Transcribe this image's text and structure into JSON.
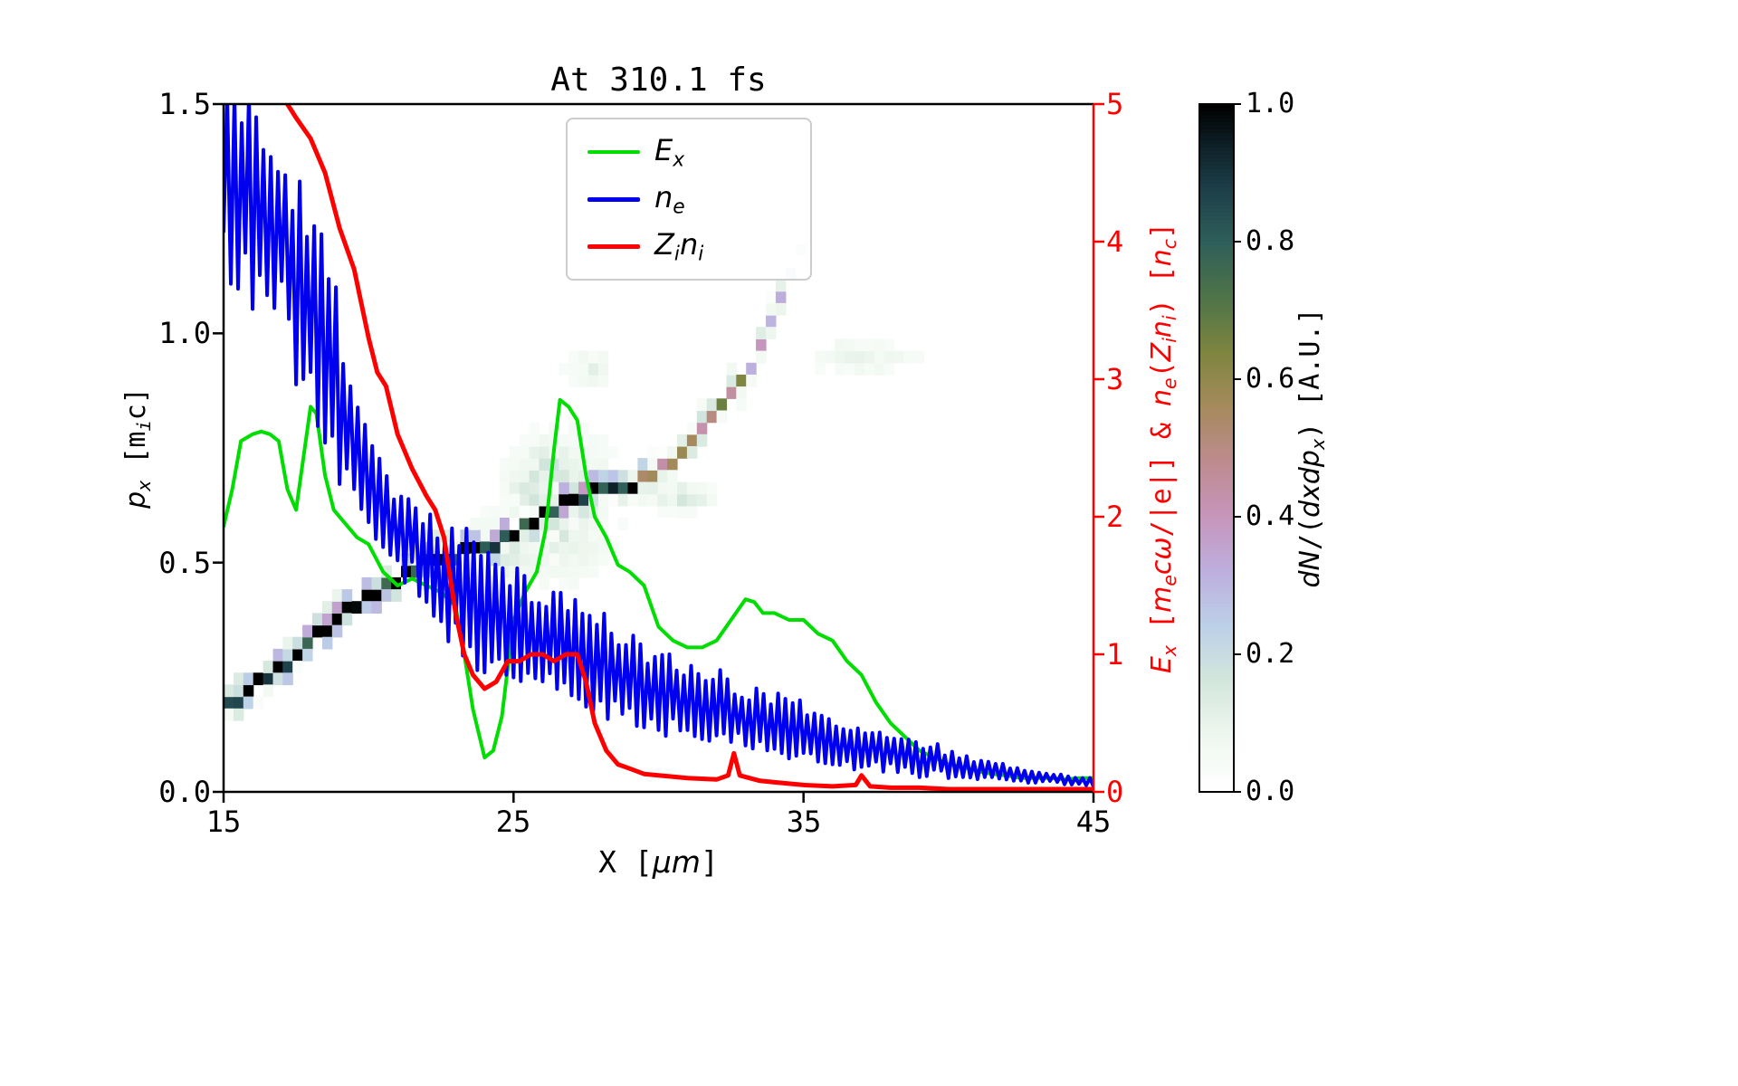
{
  "figure": {
    "title": "At 310.1 fs",
    "bg": "#ffffff"
  },
  "colors": {
    "green": "#00dd00",
    "blue": "#0000ee",
    "red": "#ff0000",
    "spine": "#000000",
    "legend_edge": "#cccccc"
  },
  "axes": {
    "left": {
      "label_parts": [
        [
          "p",
          "i"
        ],
        [
          "x",
          "sub"
        ],
        [
          " [m",
          "m"
        ],
        [
          "i",
          "msub"
        ],
        [
          "c]",
          "m"
        ]
      ],
      "ticks": [
        "0.0",
        "0.5",
        "1.0",
        "1.5"
      ]
    },
    "bottom": {
      "label_parts": [
        [
          "X [",
          "m"
        ],
        [
          "μm",
          "i"
        ],
        [
          "]",
          "m"
        ]
      ],
      "ticks": [
        "15",
        "25",
        "35",
        "45"
      ]
    },
    "right": {
      "label_parts": [
        [
          "E",
          "i"
        ],
        [
          "x",
          "sub"
        ],
        [
          " [",
          "m"
        ],
        [
          "m",
          "i"
        ],
        [
          "e",
          "sub"
        ],
        [
          "c",
          "i"
        ],
        [
          "ω",
          "i"
        ],
        [
          "/|e|] & ",
          "m"
        ],
        [
          "n",
          "i"
        ],
        [
          "e",
          "sub"
        ],
        [
          "(",
          "m"
        ],
        [
          "Z",
          "i"
        ],
        [
          "i",
          "sub"
        ],
        [
          "n",
          "i"
        ],
        [
          "i",
          "sub"
        ],
        [
          ") [",
          "m"
        ],
        [
          "n",
          "i"
        ],
        [
          "c",
          "sub"
        ],
        [
          "]",
          "m"
        ]
      ],
      "ticks": [
        "0",
        "1",
        "2",
        "3",
        "4",
        "5"
      ]
    },
    "colorbar": {
      "label_parts": [
        [
          "dN",
          "i"
        ],
        [
          "/(",
          "m"
        ],
        [
          "dxdp",
          "i"
        ],
        [
          "x",
          "sub"
        ],
        [
          ") [A.U.]",
          "m"
        ]
      ],
      "ticks": [
        "0.0",
        "0.2",
        "0.4",
        "0.6",
        "0.8",
        "1.0"
      ]
    }
  },
  "legend": {
    "items": [
      {
        "parts": [
          [
            "E",
            "i"
          ],
          [
            "x",
            "sub"
          ]
        ],
        "color": "#00dd00"
      },
      {
        "parts": [
          [
            "n",
            "i"
          ],
          [
            "e",
            "sub"
          ]
        ],
        "color": "#0000ee"
      },
      {
        "parts": [
          [
            "Z",
            "i"
          ],
          [
            "i",
            "sub"
          ],
          [
            "n",
            "i"
          ],
          [
            "i",
            "sub"
          ]
        ],
        "color": "#ff0000"
      }
    ]
  },
  "chart_data": {
    "type": "composite: 2D phase-space histogram (heatmap) + 3 line series",
    "title": "At 310.1 fs",
    "xlabel": "X [um]",
    "ylabel_left": "p_x [m_i c]",
    "ylabel_right": "E_x [m_e c w/|e|] & n_e(Z_i n_i) [n_c]",
    "colorbar_label": "dN/(dxdp_x) [A.U.]",
    "x_range": [
      15,
      45
    ],
    "left_y_range": [
      0,
      1.5
    ],
    "right_y_range": [
      0,
      5
    ],
    "grid": false,
    "legend_position": "upper center",
    "series": [
      {
        "name": "E_x",
        "axis": "right",
        "color": "#00dd00",
        "style": "solid",
        "x": [
          15,
          15.3,
          15.6,
          16,
          16.3,
          16.6,
          16.9,
          17.2,
          17.5,
          17.8,
          18,
          18.2,
          18.5,
          18.8,
          19.2,
          19.6,
          20,
          20.5,
          21,
          21.5,
          22,
          22.5,
          23,
          23.3,
          23.6,
          24,
          24.3,
          24.6,
          25,
          25.4,
          25.8,
          26.1,
          26.4,
          26.6,
          26.9,
          27.2,
          27.5,
          27.8,
          28.2,
          28.6,
          29,
          29.5,
          30,
          30.5,
          31,
          31.5,
          32,
          32.5,
          33,
          33.3,
          33.6,
          34,
          34.5,
          35,
          35.5,
          36,
          36.5,
          37,
          37.5,
          38,
          38.5,
          39,
          39.5,
          40,
          40.5,
          41,
          41.5,
          42,
          42.5,
          43,
          43.5,
          44,
          44.5,
          45
        ],
        "y": [
          1.93,
          2.2,
          2.55,
          2.6,
          2.62,
          2.6,
          2.55,
          2.2,
          2.05,
          2.5,
          2.8,
          2.75,
          2.3,
          2.05,
          1.95,
          1.85,
          1.8,
          1.6,
          1.5,
          1.55,
          1.5,
          1.45,
          1.35,
          1.0,
          0.6,
          0.25,
          0.3,
          0.55,
          1.25,
          1.45,
          1.6,
          1.9,
          2.5,
          2.85,
          2.8,
          2.7,
          2.3,
          2.0,
          1.85,
          1.65,
          1.6,
          1.5,
          1.2,
          1.1,
          1.05,
          1.05,
          1.1,
          1.25,
          1.4,
          1.38,
          1.3,
          1.3,
          1.25,
          1.25,
          1.15,
          1.1,
          0.95,
          0.85,
          0.65,
          0.5,
          0.4,
          0.3,
          0.25,
          0.2,
          0.18,
          0.15,
          0.13,
          0.12,
          0.1,
          0.1,
          0.1,
          0.09,
          0.1,
          0.1
        ]
      },
      {
        "name": "n_e",
        "axis": "right",
        "color": "#0000ee",
        "style": "solid",
        "representation": "high-frequency noisy trace; envelope sampled (hi/lo) every 0.5 um",
        "x": [
          15,
          15.5,
          16,
          16.5,
          17,
          17.5,
          18,
          18.5,
          19,
          19.5,
          20,
          20.5,
          21,
          21.5,
          22,
          22.5,
          23,
          23.5,
          24,
          24.5,
          25,
          25.5,
          26,
          26.5,
          27,
          27.5,
          28,
          28.5,
          29,
          29.5,
          30,
          30.5,
          31,
          31.5,
          32,
          32.5,
          33,
          33.5,
          34,
          34.5,
          35,
          35.5,
          36,
          36.5,
          37,
          37.5,
          38,
          38.5,
          39,
          39.5,
          40,
          40.5,
          41,
          41.5,
          42,
          42.5,
          43,
          43.5,
          44,
          44.5,
          45
        ],
        "hi": [
          5.2,
          5.1,
          5.2,
          4.9,
          4.7,
          4.6,
          4.4,
          4.2,
          3.6,
          3.0,
          2.6,
          2.4,
          2.2,
          2.2,
          2.1,
          2.1,
          2.0,
          1.9,
          1.8,
          1.7,
          1.65,
          1.6,
          1.55,
          1.5,
          1.45,
          1.45,
          1.4,
          1.3,
          1.2,
          1.1,
          1.05,
          1.0,
          0.95,
          0.95,
          0.9,
          0.85,
          0.8,
          0.8,
          0.75,
          0.72,
          0.7,
          0.6,
          0.55,
          0.5,
          0.45,
          0.5,
          0.45,
          0.4,
          0.35,
          0.4,
          0.3,
          0.28,
          0.25,
          0.22,
          0.2,
          0.18,
          0.15,
          0.15,
          0.12,
          0.12,
          0.1
        ],
        "lo": [
          3.6,
          3.5,
          3.4,
          3.5,
          3.3,
          2.8,
          2.6,
          2.3,
          2.1,
          1.9,
          1.8,
          1.6,
          1.5,
          1.45,
          1.3,
          1.0,
          0.9,
          0.85,
          0.8,
          0.75,
          0.7,
          0.7,
          0.65,
          0.6,
          0.55,
          0.5,
          0.5,
          0.45,
          0.42,
          0.4,
          0.38,
          0.35,
          0.32,
          0.3,
          0.3,
          0.28,
          0.26,
          0.25,
          0.22,
          0.2,
          0.2,
          0.18,
          0.16,
          0.15,
          0.13,
          0.12,
          0.11,
          0.1,
          0.09,
          0.09,
          0.08,
          0.07,
          0.07,
          0.06,
          0.06,
          0.05,
          0.05,
          0.05,
          0.04,
          0.04,
          0.04
        ]
      },
      {
        "name": "Z_i n_i",
        "axis": "right",
        "color": "#ff0000",
        "style": "solid",
        "x": [
          16.8,
          17,
          17.2,
          17.5,
          18,
          18.5,
          19,
          19.5,
          20,
          20.3,
          20.6,
          21,
          21.5,
          22,
          22.3,
          22.6,
          23,
          23.3,
          23.6,
          24,
          24.4,
          24.8,
          25.2,
          25.6,
          26,
          26.4,
          26.8,
          27.2,
          27.5,
          27.8,
          28.2,
          28.6,
          29,
          29.5,
          30,
          31,
          32,
          32.4,
          32.6,
          32.8,
          33.5,
          34,
          35,
          36,
          36.8,
          37,
          37.3,
          38,
          39,
          40,
          41,
          42,
          43,
          44,
          45
        ],
        "y": [
          5.6,
          5.3,
          5.0,
          4.9,
          4.75,
          4.5,
          4.1,
          3.8,
          3.3,
          3.05,
          2.95,
          2.6,
          2.35,
          2.15,
          2.05,
          1.85,
          1.3,
          1.0,
          0.85,
          0.75,
          0.8,
          0.95,
          0.95,
          1.0,
          1.0,
          0.95,
          1.0,
          1.0,
          0.8,
          0.5,
          0.3,
          0.2,
          0.17,
          0.13,
          0.12,
          0.1,
          0.09,
          0.12,
          0.28,
          0.12,
          0.08,
          0.07,
          0.05,
          0.04,
          0.05,
          0.12,
          0.04,
          0.03,
          0.03,
          0.02,
          0.02,
          0.02,
          0.02,
          0.02,
          0.02
        ]
      }
    ],
    "heatmap": {
      "quantity": "dN/(dxdp_x) [A.U.] ion phase-space density, value range 0.0-1.0",
      "cell": [
        0.34,
        0.026
      ],
      "colormap_stops": [
        [
          0.0,
          "#ffffff"
        ],
        [
          0.08,
          "#eef7ef"
        ],
        [
          0.16,
          "#d3e6dc"
        ],
        [
          0.24,
          "#bcd0e8"
        ],
        [
          0.32,
          "#bdaede"
        ],
        [
          0.4,
          "#c795bb"
        ],
        [
          0.48,
          "#bd8b8e"
        ],
        [
          0.56,
          "#a68a5c"
        ],
        [
          0.64,
          "#7d853f"
        ],
        [
          0.72,
          "#4f7448"
        ],
        [
          0.8,
          "#2f5f5a"
        ],
        [
          0.88,
          "#1c3e48"
        ],
        [
          0.94,
          "#0e2128"
        ],
        [
          1.0,
          "#000000"
        ]
      ],
      "band": [
        [
          15,
          0.17,
          0.9
        ],
        [
          16,
          0.22,
          0.92
        ],
        [
          17,
          0.27,
          0.9
        ],
        [
          18,
          0.33,
          0.95
        ],
        [
          19,
          0.38,
          0.9
        ],
        [
          20,
          0.42,
          0.95
        ],
        [
          21,
          0.46,
          0.9
        ],
        [
          22,
          0.49,
          0.85
        ],
        [
          23,
          0.51,
          0.8
        ],
        [
          24,
          0.52,
          0.85
        ],
        [
          25,
          0.56,
          0.92
        ],
        [
          26,
          0.6,
          0.97
        ],
        [
          27,
          0.63,
          1.0
        ],
        [
          28,
          0.645,
          0.9
        ],
        [
          29,
          0.66,
          0.6
        ],
        [
          30,
          0.7,
          0.5
        ],
        [
          31,
          0.75,
          0.45
        ],
        [
          32,
          0.82,
          0.4
        ],
        [
          33,
          0.92,
          0.35
        ],
        [
          33.5,
          0.98,
          0.32
        ],
        [
          34,
          1.06,
          0.28
        ],
        [
          34.4,
          1.13,
          0.22
        ],
        [
          34.8,
          1.19,
          0.15
        ]
      ],
      "blobs": [
        [
          26.3,
          0.63,
          1.6,
          0.14,
          0.22
        ],
        [
          25.0,
          0.52,
          1.2,
          0.08,
          0.15
        ],
        [
          30.6,
          0.62,
          1.3,
          0.03,
          0.15
        ],
        [
          37.0,
          0.93,
          1.8,
          0.04,
          0.1
        ],
        [
          27.4,
          0.91,
          0.8,
          0.04,
          0.1
        ]
      ]
    }
  }
}
